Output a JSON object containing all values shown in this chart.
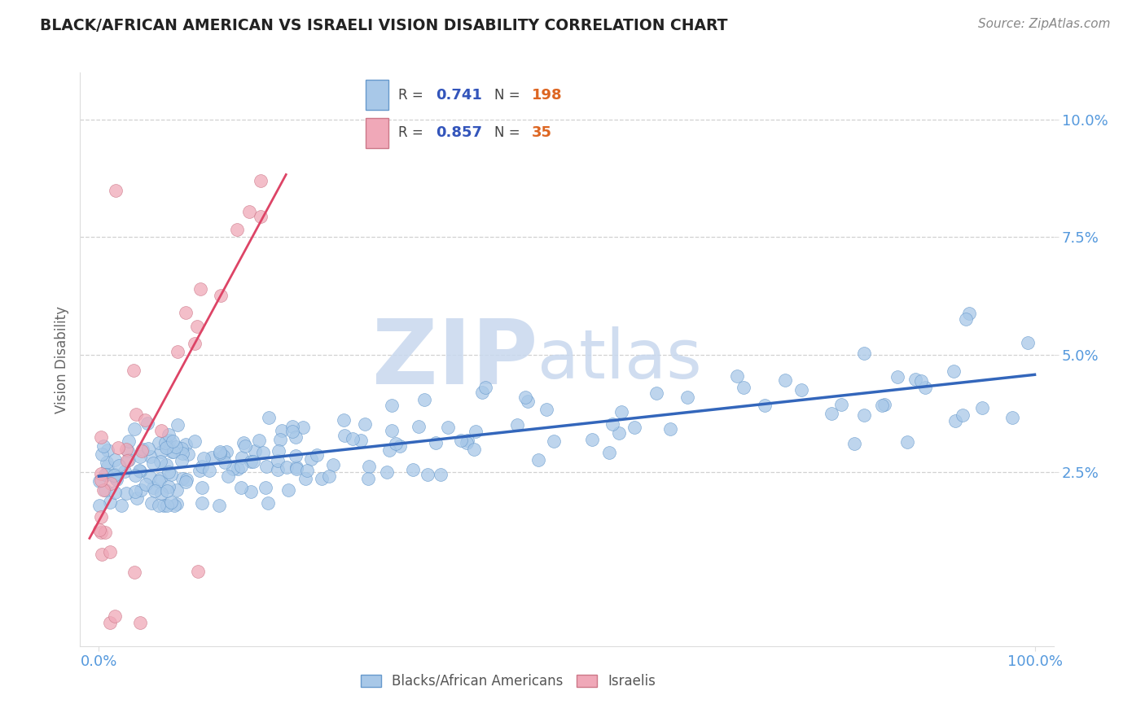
{
  "title": "BLACK/AFRICAN AMERICAN VS ISRAELI VISION DISABILITY CORRELATION CHART",
  "source_text": "Source: ZipAtlas.com",
  "ylabel": "Vision Disability",
  "watermark_zip": "ZIP",
  "watermark_atlas": "atlas",
  "legend_r_blue": "0.741",
  "legend_n_blue": "198",
  "legend_r_pink": "0.857",
  "legend_n_pink": "35",
  "blue_color": "#a8c8e8",
  "blue_edge_color": "#6699cc",
  "pink_color": "#f0a8b8",
  "pink_edge_color": "#cc7788",
  "blue_line_color": "#3366bb",
  "pink_line_color": "#dd4466",
  "title_color": "#222222",
  "source_color": "#888888",
  "axis_label_color": "#666666",
  "tick_label_color": "#5599dd",
  "grid_color": "#cccccc",
  "watermark_color": "#ddeeff",
  "legend_n_color": "#dd6622",
  "legend_r_color": "#3355bb",
  "legend_box_edge": "#bbbbbb",
  "ytick_vals": [
    2.5,
    5.0,
    7.5,
    10.0
  ],
  "ytick_labels": [
    "2.5%",
    "5.0%",
    "7.5%",
    "10.0%"
  ],
  "xlim": [
    -2,
    102
  ],
  "ylim": [
    -1.2,
    11.0
  ],
  "yplot_min": -1.2,
  "yplot_max": 11.0
}
